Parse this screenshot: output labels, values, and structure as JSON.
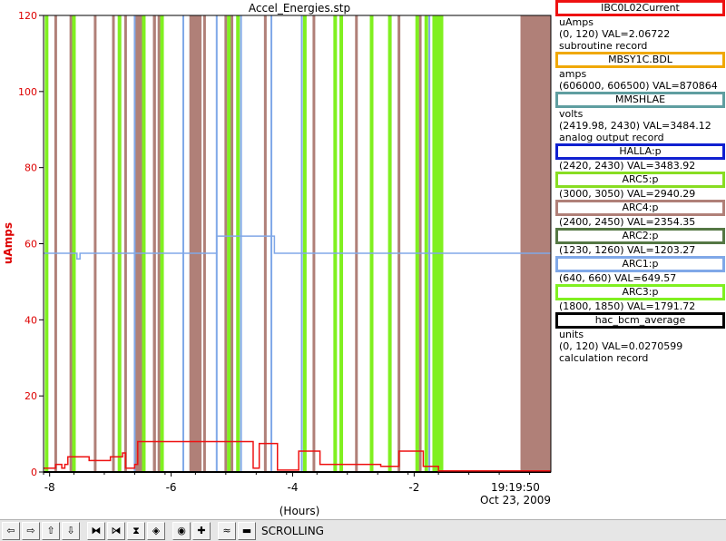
{
  "chart_data": {
    "type": "line",
    "title": "Accel_Energies.stp",
    "xlabel": "(Hours)",
    "ylabel": "uAmps",
    "xlim": [
      -8.1,
      0.25
    ],
    "ylim": [
      0,
      120
    ],
    "x_ticks": [
      -8,
      -6,
      -4,
      -2
    ],
    "y_ticks": [
      0,
      20,
      40,
      60,
      80,
      100,
      120
    ],
    "end_time_label": "19:19:50",
    "end_date_label": "Oct 23, 2009",
    "grid": false,
    "colors": {
      "ibc0l02": "#ee1111",
      "mbsy1c": "#f0a800",
      "mmshlae": "#5f9ea0",
      "halla": "#1020d0",
      "arc5": "#88dd22",
      "arc4": "#b08078",
      "arc2": "#557744",
      "arc1": "#80a8e8",
      "arc3": "#80f020",
      "bcm": "#000000"
    },
    "arc4_spikes": [
      -7.9,
      -7.65,
      -7.25,
      -6.95,
      -6.75,
      -6.5,
      -6.2,
      -5.55,
      -5.45,
      -5.1,
      -5.0,
      -4.45,
      -3.65,
      -2.95,
      -2.7,
      -2.25,
      -1.9
    ],
    "arc4_bands": [
      [
        -6.6,
        -6.45
      ],
      [
        -6.3,
        -6.25
      ],
      [
        -5.7,
        -5.5
      ],
      [
        -0.25,
        0.25
      ]
    ],
    "arc3_spikes": [
      -8.05,
      -7.6,
      -6.85,
      -6.45,
      -6.15,
      -5.05,
      -4.9,
      -3.8,
      -3.3,
      -3.2,
      -2.7,
      -2.4,
      -1.95,
      -1.8,
      -1.55
    ],
    "arc3_bands": [
      [
        -1.7,
        -1.55
      ]
    ],
    "arc1_segments": [
      [
        -8.1,
        57.5
      ],
      [
        -7.6,
        57.5
      ],
      [
        -7.55,
        56
      ],
      [
        -7.5,
        57.5
      ],
      [
        -5.3,
        57.5
      ],
      [
        -5.25,
        62
      ],
      [
        -4.35,
        62
      ],
      [
        -4.3,
        57.5
      ],
      [
        0.25,
        57.5
      ]
    ],
    "arc1_spikes": [
      -6.6,
      -5.8,
      -5.25,
      -4.85,
      -4.35,
      -3.85,
      -1.75
    ],
    "ibc0l02_current": [
      [
        -8.1,
        1
      ],
      [
        -7.95,
        1
      ],
      [
        -7.9,
        2
      ],
      [
        -7.8,
        1
      ],
      [
        -7.75,
        2
      ],
      [
        -7.7,
        4
      ],
      [
        -7.4,
        4
      ],
      [
        -7.35,
        3
      ],
      [
        -7.15,
        3
      ],
      [
        -7.0,
        4
      ],
      [
        -6.8,
        5
      ],
      [
        -6.75,
        1
      ],
      [
        -6.6,
        2
      ],
      [
        -6.55,
        8
      ],
      [
        -4.7,
        8
      ],
      [
        -4.65,
        1
      ],
      [
        -4.55,
        7.5
      ],
      [
        -4.3,
        7.5
      ],
      [
        -4.25,
        0.5
      ],
      [
        -3.95,
        0.5
      ],
      [
        -3.9,
        5.5
      ],
      [
        -3.6,
        5.5
      ],
      [
        -3.55,
        2
      ],
      [
        -2.6,
        2
      ],
      [
        -2.55,
        1.5
      ],
      [
        -2.3,
        1.5
      ],
      [
        -2.25,
        5.5
      ],
      [
        -1.9,
        5.5
      ],
      [
        -1.85,
        1.5
      ],
      [
        -1.65,
        1.5
      ],
      [
        -1.6,
        0.3
      ],
      [
        0.25,
        0.3
      ]
    ],
    "hac_bcm_average": [
      [
        -8.1,
        0
      ],
      [
        0.25,
        0
      ]
    ]
  },
  "legend": [
    {
      "name": "IBC0L02Current",
      "color": "#ee1111",
      "lines": [
        "uAmps",
        "(0, 120) VAL=2.06722",
        "subroutine record"
      ]
    },
    {
      "name": "MBSY1C.BDL",
      "color": "#f0a800",
      "lines": [
        "amps",
        "(606000, 606500) VAL=870864"
      ]
    },
    {
      "name": "MMSHLAE",
      "color": "#5f9ea0",
      "lines": [
        "volts",
        "(2419.98, 2430) VAL=3484.12",
        "analog output record"
      ]
    },
    {
      "name": "HALLA:p",
      "color": "#1020d0",
      "lines": [
        "(2420, 2430) VAL=3483.92"
      ]
    },
    {
      "name": "ARC5:p",
      "color": "#88dd22",
      "lines": [
        "(3000, 3050) VAL=2940.29"
      ]
    },
    {
      "name": "ARC4:p",
      "color": "#b08078",
      "lines": [
        "(2400, 2450) VAL=2354.35"
      ]
    },
    {
      "name": "ARC2:p",
      "color": "#557744",
      "lines": [
        "(1230, 1260) VAL=1203.27"
      ]
    },
    {
      "name": "ARC1:p",
      "color": "#80a8e8",
      "lines": [
        "(640, 660) VAL=649.57"
      ]
    },
    {
      "name": "ARC3:p",
      "color": "#80f020",
      "lines": [
        "(1800, 1850) VAL=1791.72"
      ]
    },
    {
      "name": "hac_bcm_average",
      "color": "#000000",
      "lines": [
        "units",
        "(0, 120) VAL=0.0270599",
        "calculation record"
      ]
    }
  ],
  "toolbar": {
    "buttons": [
      {
        "name": "pan-left-icon",
        "glyph": "⇦"
      },
      {
        "name": "pan-right-icon",
        "glyph": "⇨"
      },
      {
        "name": "pan-up-icon",
        "glyph": "⇧"
      },
      {
        "name": "pan-down-icon",
        "glyph": "⇩"
      },
      {
        "name": "zoom-in-x-icon",
        "glyph": "⧓"
      },
      {
        "name": "zoom-out-x-icon",
        "glyph": "⧒"
      },
      {
        "name": "zoom-in-y-icon",
        "glyph": "⧗"
      },
      {
        "name": "zoom-out-y-icon",
        "glyph": "◈"
      },
      {
        "name": "auto-scale-icon",
        "glyph": "◉"
      },
      {
        "name": "reset-icon",
        "glyph": "✚"
      },
      {
        "name": "style-icon",
        "glyph": "≈"
      },
      {
        "name": "config-icon",
        "glyph": "▬"
      }
    ],
    "status": "SCROLLING"
  }
}
